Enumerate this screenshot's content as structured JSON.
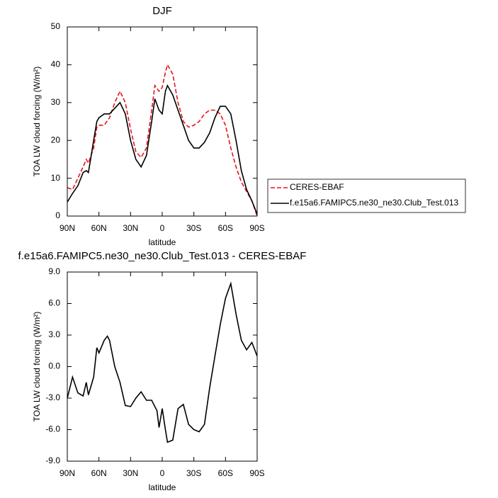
{
  "chart_data": [
    {
      "type": "line",
      "title": "DJF",
      "x_label": "latitude",
      "y_label": "TOA LW cloud forcing (W/m²)",
      "x": [
        90,
        85,
        80,
        75,
        72,
        70,
        65,
        62,
        60,
        55,
        50,
        45,
        40,
        35,
        30,
        25,
        20,
        15,
        10,
        7,
        3,
        0,
        -3,
        -5,
        -10,
        -15,
        -20,
        -25,
        -30,
        -35,
        -40,
        -45,
        -50,
        -55,
        -60,
        -65,
        -70,
        -75,
        -80,
        -85,
        -90
      ],
      "series": [
        {
          "name": "CERES-EBAF",
          "color": "#e8141c",
          "line_style": "dashed",
          "values": [
            7.5,
            7,
            10,
            13,
            15,
            14,
            18,
            23.5,
            24,
            24,
            26,
            30,
            33,
            30,
            23,
            17,
            15.5,
            18,
            28,
            34.5,
            33,
            34,
            38,
            40,
            37.5,
            30,
            25,
            23.5,
            24,
            25,
            27,
            28,
            28,
            27,
            24,
            18,
            13,
            9,
            6.5,
            4,
            0
          ]
        },
        {
          "name": "f.e15a6.FAMIPC5.ne30_ne30.Club_Test.013",
          "color": "#000000",
          "line_style": "solid",
          "values": [
            3.7,
            6,
            8,
            11.5,
            12,
            11.5,
            20,
            25,
            26,
            27,
            27,
            28.5,
            30,
            27,
            20,
            15,
            13,
            16,
            25,
            31,
            28,
            27,
            33,
            34.5,
            32,
            28,
            24,
            20,
            18,
            18,
            19.5,
            22,
            26,
            29,
            29,
            27,
            20,
            12,
            7,
            4,
            0.5
          ]
        }
      ],
      "xlim": [
        90,
        -90
      ],
      "xticks": [
        {
          "value": 90,
          "label": "90N"
        },
        {
          "value": 60,
          "label": "60N"
        },
        {
          "value": 30,
          "label": "30N"
        },
        {
          "value": 0,
          "label": "0"
        },
        {
          "value": -30,
          "label": "30S"
        },
        {
          "value": -60,
          "label": "60S"
        },
        {
          "value": -90,
          "label": "90S"
        }
      ],
      "ylim": [
        0,
        50
      ],
      "yticks": [
        0,
        10,
        20,
        30,
        40,
        50
      ],
      "legend": "outside-right"
    },
    {
      "type": "line",
      "title": "f.e15a6.FAMIPC5.ne30_ne30.Club_Test.013 - CERES-EBAF",
      "x_label": "latitude",
      "y_label": "TOA LW cloud forcing (W/m²)",
      "x": [
        90,
        85,
        80,
        75,
        72,
        70,
        65,
        62,
        60,
        55,
        52,
        50,
        45,
        40,
        35,
        30,
        25,
        20,
        15,
        10,
        5,
        3,
        0,
        -3,
        -5,
        -10,
        -15,
        -20,
        -25,
        -30,
        -35,
        -40,
        -45,
        -50,
        -55,
        -60,
        -65,
        -70,
        -75,
        -80,
        -85,
        -90
      ],
      "series": [
        {
          "color": "#000000",
          "line_style": "solid",
          "values": [
            -3,
            -1,
            -2.5,
            -2.8,
            -1.5,
            -2.7,
            -1,
            1.8,
            1.3,
            2.5,
            2.9,
            2.5,
            0,
            -1.5,
            -3.7,
            -3.8,
            -3,
            -2.4,
            -3.2,
            -3.2,
            -4.2,
            -5.8,
            -4,
            -6,
            -7.2,
            -7,
            -4,
            -3.6,
            -5.5,
            -6,
            -6.2,
            -5.5,
            -2,
            1,
            4,
            6.5,
            7.9,
            5,
            2.5,
            1.6,
            2.3,
            1
          ]
        }
      ],
      "xlim": [
        90,
        -90
      ],
      "xticks": [
        {
          "value": 90,
          "label": "90N"
        },
        {
          "value": 60,
          "label": "60N"
        },
        {
          "value": 30,
          "label": "30N"
        },
        {
          "value": 0,
          "label": "0"
        },
        {
          "value": -30,
          "label": "30S"
        },
        {
          "value": -60,
          "label": "60S"
        },
        {
          "value": -90,
          "label": "90S"
        }
      ],
      "ylim": [
        -9,
        9
      ],
      "yticks": [
        {
          "value": -9,
          "label": "-9.0"
        },
        {
          "value": -6,
          "label": "-6.0"
        },
        {
          "value": -3,
          "label": "-3.0"
        },
        {
          "value": 0,
          "label": "0.0"
        },
        {
          "value": 3,
          "label": "3.0"
        },
        {
          "value": 6,
          "label": "6.0"
        },
        {
          "value": 9,
          "label": "9.0"
        }
      ]
    }
  ]
}
